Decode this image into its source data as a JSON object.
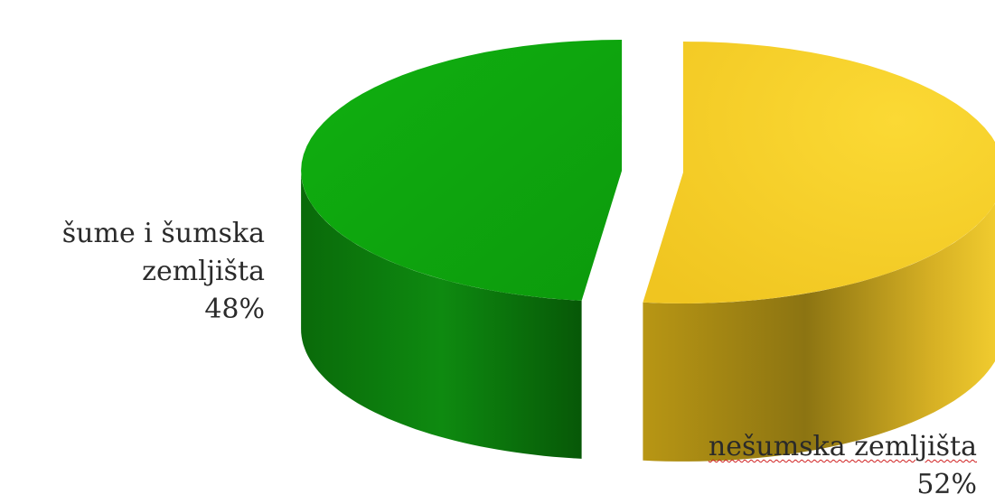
{
  "chart_data": {
    "type": "pie",
    "three_d": true,
    "exploded": true,
    "title": "",
    "slices": [
      {
        "label_line1": "šume i šumska",
        "label_line2": "zemljišta",
        "percent_label": "48%",
        "value": 48,
        "color": "#12a512"
      },
      {
        "label_line1": "nešumska zemljišta",
        "label_line2": "",
        "percent_label": "52%",
        "value": 52,
        "color": "#f5cc28"
      }
    ],
    "legend": "none",
    "data_labels": "outside"
  }
}
